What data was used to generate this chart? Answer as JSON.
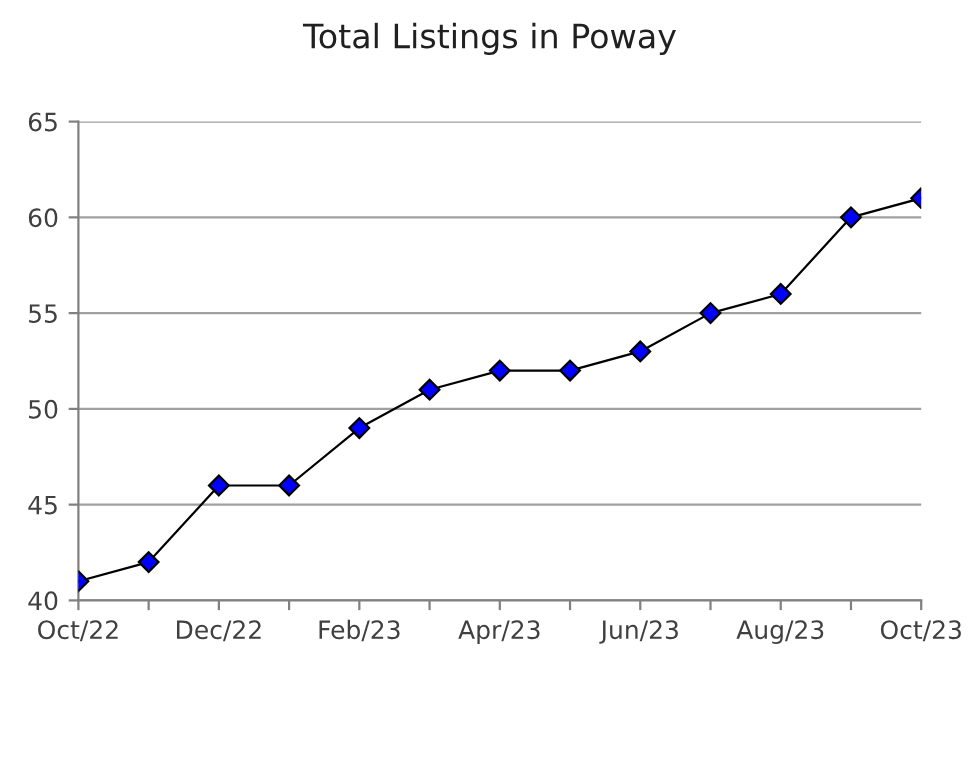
{
  "chart_data": {
    "type": "line",
    "title": "Total Listings in Poway",
    "categories": [
      "Oct/22",
      null,
      "Dec/22",
      null,
      "Feb/23",
      null,
      "Apr/23",
      null,
      "Jun/23",
      null,
      "Aug/23",
      null,
      "Oct/23"
    ],
    "series": [
      {
        "color": "#0000ff",
        "values": [
          41,
          42,
          46,
          46,
          49,
          51,
          52,
          52,
          53,
          55,
          56,
          60,
          61
        ]
      }
    ],
    "ylim": [
      40,
      65
    ],
    "yticks": [
      40,
      45,
      50,
      55,
      60,
      65
    ],
    "grid": "y",
    "marker": "diamond",
    "line_style": "solid",
    "legend": false
  }
}
